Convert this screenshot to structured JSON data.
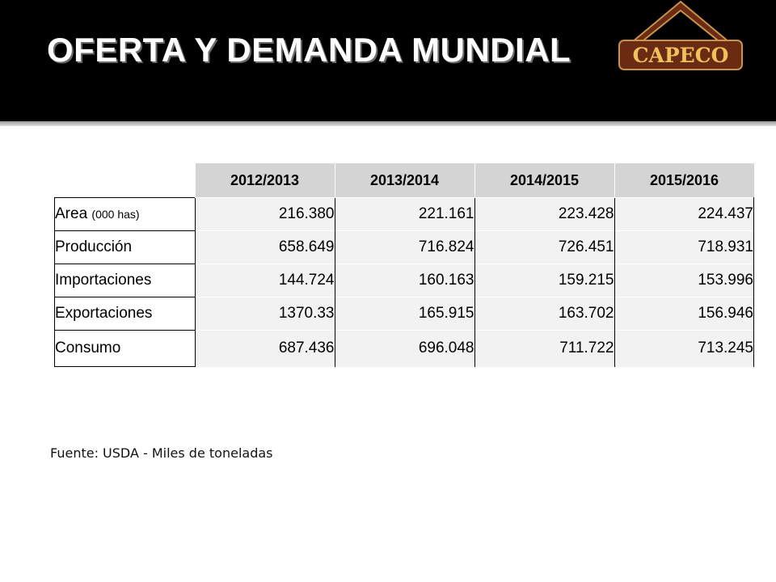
{
  "header": {
    "title": "OFERTA Y DEMANDA MUNDIAL",
    "logo_text": "CAPECO"
  },
  "table": {
    "columns": [
      "2012/2013",
      "2013/2014",
      "2014/2015",
      "2015/2016"
    ],
    "rows": [
      {
        "label": "Area",
        "unit": "(000 has)",
        "values": [
          "216.380",
          "221.161",
          "223.428",
          "224.437"
        ]
      },
      {
        "label": "Producción",
        "unit": "",
        "values": [
          "658.649",
          "716.824",
          "726.451",
          "718.931"
        ]
      },
      {
        "label": "Importaciones",
        "unit": "",
        "values": [
          "144.724",
          "160.163",
          "159.215",
          "153.996"
        ]
      },
      {
        "label": "Exportaciones",
        "unit": "",
        "values": [
          "1370.33",
          "165.915",
          "163.702",
          "156.946"
        ]
      },
      {
        "label": "Consumo",
        "unit": "",
        "values": [
          "687.436",
          "696.048",
          "711.722",
          "713.245"
        ]
      }
    ]
  },
  "footer": {
    "source": "Fuente: USDA - Miles de toneladas"
  },
  "colors": {
    "header_bg": "#000000",
    "logo_gold": "#f0c15a",
    "logo_brown": "#6b2a12",
    "table_header_bg": "#d4d4d4",
    "cell_bg": "#f2f2f2"
  }
}
